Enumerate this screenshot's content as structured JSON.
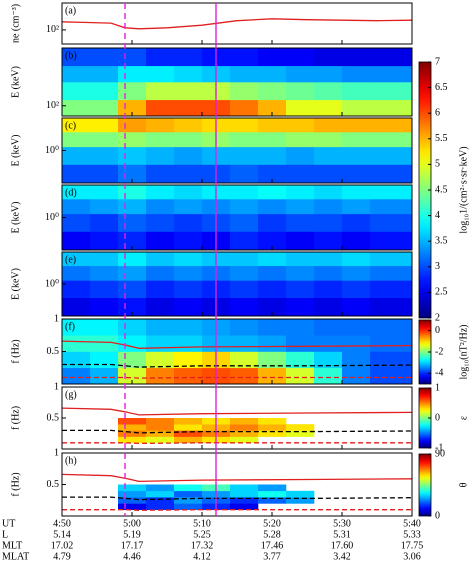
{
  "chart_data": [
    {
      "type": "line",
      "panel_label": "(a)",
      "ylabel": "ne (cm⁻³)",
      "xlim": [
        290,
        340
      ],
      "xticks": [
        290,
        300,
        310,
        320,
        330,
        340
      ],
      "ylog": true,
      "ylim": [
        30,
        1000
      ],
      "yticks": [
        {
          "value": 100,
          "label": "10²"
        }
      ],
      "color": "#e02020",
      "x": [
        290,
        293,
        297,
        299,
        301,
        305,
        310,
        315,
        320,
        325,
        330,
        335,
        340
      ],
      "values": [
        200,
        190,
        180,
        120,
        110,
        120,
        150,
        220,
        260,
        240,
        230,
        220,
        230
      ]
    },
    {
      "type": "heatmap",
      "panel_label": "(b)",
      "ylabel": "E (keV)",
      "xlim": [
        290,
        340
      ],
      "xticks": [
        290,
        300,
        310,
        320,
        330,
        340
      ],
      "ylog": true,
      "ylim": [
        50,
        5000
      ],
      "yticks": [
        {
          "value": 100,
          "label": "10²"
        }
      ],
      "xbins": [
        290,
        294,
        298,
        302,
        306,
        310,
        314,
        318,
        322,
        326,
        330,
        334,
        340
      ],
      "ybins": [
        50,
        150,
        500,
        1500,
        5000
      ],
      "z": [
        [
          4.5,
          4.5,
          5.5,
          6.0,
          6.0,
          6.0,
          5.8,
          5.5,
          5.0,
          5.0,
          4.8,
          4.8
        ],
        [
          4.0,
          4.0,
          4.5,
          4.8,
          4.8,
          4.8,
          4.6,
          4.5,
          4.4,
          4.3,
          4.2,
          4.2
        ],
        [
          3.5,
          3.5,
          3.8,
          3.8,
          3.7,
          3.6,
          3.5,
          3.5,
          3.4,
          3.4,
          3.3,
          3.3
        ],
        [
          3.0,
          3.0,
          3.0,
          2.8,
          2.8,
          2.7,
          2.7,
          2.6,
          2.6,
          2.5,
          2.5,
          2.5
        ]
      ],
      "colorbar": {
        "lim": [
          2,
          7
        ],
        "ticks": [
          2,
          2.5,
          3,
          3.5,
          4,
          4.5,
          5,
          5.5,
          6,
          6.5,
          7
        ],
        "label": "log₁₀1/(cm²·s·sr·keV)"
      }
    },
    {
      "type": "heatmap",
      "panel_label": "(c)",
      "ylabel": "E (keV)",
      "xlim": [
        290,
        340
      ],
      "xticks": [
        290,
        300,
        310,
        320,
        330,
        340
      ],
      "ylog": true,
      "ylim": [
        0.2,
        5
      ],
      "yticks": [
        {
          "value": 1,
          "label": "10⁰"
        }
      ],
      "xbins": [
        290,
        294,
        298,
        302,
        306,
        310,
        314,
        318,
        322,
        326,
        330,
        334,
        340
      ],
      "ybins": [
        0.2,
        0.5,
        1.2,
        2.5,
        5
      ],
      "z": [
        [
          3.0,
          3.0,
          3.2,
          3.0,
          3.0,
          3.0,
          3.1,
          3.0,
          3.0,
          3.0,
          3.0,
          3.0
        ],
        [
          3.5,
          3.5,
          3.6,
          3.5,
          3.4,
          3.5,
          3.5,
          3.5,
          3.4,
          3.5,
          3.5,
          3.5
        ],
        [
          4.5,
          4.5,
          4.6,
          4.5,
          4.5,
          4.6,
          4.5,
          4.5,
          4.6,
          4.6,
          4.5,
          4.5
        ],
        [
          5.2,
          5.2,
          5.6,
          5.5,
          5.4,
          5.3,
          5.3,
          5.4,
          5.4,
          5.5,
          5.5,
          5.5
        ]
      ]
    },
    {
      "type": "heatmap",
      "panel_label": "(d)",
      "ylabel": "E (keV)",
      "xlim": [
        290,
        340
      ],
      "xticks": [
        290,
        300,
        310,
        320,
        330,
        340
      ],
      "ylog": true,
      "ylim": [
        0.2,
        5
      ],
      "yticks": [
        {
          "value": 1,
          "label": "10⁰"
        }
      ],
      "xbins": [
        290,
        294,
        298,
        302,
        306,
        310,
        314,
        318,
        322,
        326,
        330,
        334,
        340
      ],
      "ybins": [
        0.2,
        0.5,
        1.2,
        2.5,
        5
      ],
      "z": [
        [
          2.6,
          2.7,
          2.8,
          2.6,
          2.7,
          2.6,
          2.8,
          2.7,
          2.6,
          2.7,
          2.6,
          2.7
        ],
        [
          3.0,
          2.9,
          3.1,
          3.0,
          2.9,
          3.0,
          3.1,
          2.9,
          3.0,
          3.0,
          2.9,
          3.0
        ],
        [
          3.3,
          3.4,
          3.5,
          3.3,
          3.4,
          3.3,
          3.4,
          3.3,
          3.4,
          3.3,
          3.4,
          3.3
        ],
        [
          3.8,
          3.8,
          4.0,
          3.8,
          3.7,
          3.8,
          3.8,
          3.9,
          3.8,
          3.7,
          3.8,
          3.8
        ]
      ]
    },
    {
      "type": "heatmap",
      "panel_label": "(e)",
      "ylabel": "E (keV)",
      "xlim": [
        290,
        340
      ],
      "xticks": [
        290,
        300,
        310,
        320,
        330,
        340
      ],
      "ylog": true,
      "ylim": [
        0.2,
        5
      ],
      "yticks": [
        {
          "value": 1,
          "label": "10⁰"
        }
      ],
      "xbins": [
        290,
        294,
        298,
        302,
        306,
        310,
        314,
        318,
        322,
        326,
        330,
        334,
        340
      ],
      "ybins": [
        0.2,
        0.5,
        1.2,
        2.5,
        5
      ],
      "z": [
        [
          2.5,
          2.6,
          2.7,
          2.5,
          2.6,
          2.5,
          2.6,
          2.5,
          2.6,
          2.5,
          2.6,
          2.5
        ],
        [
          2.8,
          2.9,
          3.0,
          2.8,
          2.9,
          2.8,
          2.9,
          2.8,
          2.9,
          2.8,
          2.9,
          2.8
        ],
        [
          3.2,
          3.3,
          3.4,
          3.2,
          3.3,
          3.2,
          3.3,
          3.2,
          3.3,
          3.2,
          3.3,
          3.2
        ],
        [
          3.6,
          3.6,
          3.8,
          3.6,
          3.7,
          3.6,
          3.6,
          3.7,
          3.6,
          3.6,
          3.7,
          3.6
        ]
      ]
    },
    {
      "type": "heatmap",
      "panel_label": "(f)",
      "ylabel": "f (Hz)",
      "xlim": [
        290,
        340
      ],
      "xticks": [
        290,
        300,
        310,
        320,
        330,
        340
      ],
      "ylim": [
        0,
        1
      ],
      "yticks": [
        0.5,
        1
      ],
      "xbins": [
        290,
        294,
        298,
        302,
        306,
        310,
        314,
        318,
        322,
        326,
        330,
        334,
        340
      ],
      "ybins": [
        0,
        0.25,
        0.5,
        0.75,
        1
      ],
      "z": [
        [
          -3.5,
          -3.2,
          -1.5,
          -0.5,
          -0.3,
          -0.2,
          -0.3,
          -0.8,
          -1.5,
          -2.5,
          -3.5,
          -3.8
        ],
        [
          -3.0,
          -2.8,
          -2.0,
          -1.5,
          -1.2,
          -1.0,
          -1.5,
          -2.0,
          -2.5,
          -3.0,
          -3.5,
          -3.8
        ],
        [
          -2.5,
          -2.5,
          -2.8,
          -3.0,
          -3.0,
          -3.2,
          -3.2,
          -3.3,
          -3.5,
          -3.5,
          -3.5,
          -3.6
        ],
        [
          -2.8,
          -2.8,
          -3.0,
          -3.2,
          -3.2,
          -3.3,
          -3.4,
          -3.5,
          -3.5,
          -3.6,
          -3.6,
          -3.6
        ]
      ],
      "colorbar": {
        "lim": [
          -5,
          1
        ],
        "ticks": [
          0,
          -2,
          -4
        ],
        "label": "log₁₀(nT²/Hz)"
      },
      "series": [
        {
          "color": "#e02020",
          "dash": false,
          "x": [
            290,
            297,
            299,
            301,
            310,
            325,
            340
          ],
          "values": [
            0.66,
            0.64,
            0.6,
            0.55,
            0.57,
            0.58,
            0.59
          ]
        },
        {
          "color": "#000000",
          "dash": true,
          "x": [
            290,
            297,
            299,
            301,
            310,
            325,
            340
          ],
          "values": [
            0.3,
            0.3,
            0.28,
            0.26,
            0.28,
            0.28,
            0.29
          ]
        },
        {
          "color": "#e02020",
          "dash": true,
          "x": [
            290,
            297,
            299,
            301,
            310,
            325,
            340
          ],
          "values": [
            0.1,
            0.1,
            0.1,
            0.09,
            0.1,
            0.1,
            0.1
          ]
        }
      ]
    },
    {
      "type": "heatmap",
      "panel_label": "(g)",
      "ylabel": "f (Hz)",
      "xlim": [
        290,
        340
      ],
      "xticks": [
        290,
        300,
        310,
        320,
        330,
        340
      ],
      "ylim": [
        0,
        1
      ],
      "yticks": [
        0.5,
        1
      ],
      "xbins": [
        290,
        294,
        298,
        302,
        306,
        310,
        314,
        318,
        322,
        326,
        330,
        334,
        340
      ],
      "ybins": [
        0.1,
        0.2,
        0.3,
        0.4,
        0.5
      ],
      "z": [
        [
          null,
          null,
          0.3,
          0.2,
          0.4,
          0.3,
          0.2,
          null,
          null,
          null,
          null,
          null
        ],
        [
          null,
          null,
          0.5,
          0.4,
          0.6,
          0.5,
          0.4,
          0.3,
          0.2,
          null,
          null,
          null
        ],
        [
          null,
          null,
          0.4,
          0.5,
          0.3,
          0.4,
          0.5,
          0.4,
          0.3,
          null,
          null,
          null
        ],
        [
          null,
          null,
          0.6,
          0.5,
          0.4,
          0.3,
          0.4,
          0.3,
          null,
          null,
          null,
          null
        ]
      ],
      "colorbar": {
        "lim": [
          -1,
          1
        ],
        "ticks": [
          1,
          0,
          -1
        ],
        "label": "ε"
      },
      "series": [
        {
          "color": "#e02020",
          "dash": false,
          "x": [
            290,
            297,
            299,
            301,
            310,
            325,
            340
          ],
          "values": [
            0.66,
            0.64,
            0.6,
            0.55,
            0.57,
            0.58,
            0.59
          ]
        },
        {
          "color": "#000000",
          "dash": true,
          "x": [
            290,
            297,
            299,
            301,
            310,
            325,
            340
          ],
          "values": [
            0.3,
            0.3,
            0.28,
            0.26,
            0.28,
            0.28,
            0.29
          ]
        },
        {
          "color": "#e02020",
          "dash": true,
          "x": [
            290,
            297,
            299,
            301,
            310,
            325,
            340
          ],
          "values": [
            0.1,
            0.1,
            0.1,
            0.09,
            0.1,
            0.1,
            0.1
          ]
        }
      ]
    },
    {
      "type": "heatmap",
      "panel_label": "(h)",
      "ylabel": "f (Hz)",
      "xlim": [
        290,
        340
      ],
      "xticks": [
        {
          "value": 290,
          "label": "4:50"
        },
        {
          "value": 300,
          "label": "5:00"
        },
        {
          "value": 310,
          "label": "5:10"
        },
        {
          "value": 320,
          "label": "5:20"
        },
        {
          "value": 330,
          "label": "5:30"
        },
        {
          "value": 340,
          "label": "5:40"
        }
      ],
      "ylim": [
        0,
        1
      ],
      "yticks": [
        0.5,
        1
      ],
      "xbins": [
        290,
        294,
        298,
        302,
        306,
        310,
        314,
        318,
        322,
        326,
        330,
        334,
        340
      ],
      "ybins": [
        0.1,
        0.2,
        0.3,
        0.4,
        0.5
      ],
      "z": [
        [
          null,
          null,
          10,
          15,
          20,
          15,
          10,
          null,
          null,
          null,
          null,
          null
        ],
        [
          null,
          null,
          20,
          15,
          25,
          20,
          15,
          20,
          25,
          null,
          null,
          null
        ],
        [
          null,
          null,
          25,
          30,
          20,
          25,
          30,
          35,
          30,
          null,
          null,
          null
        ],
        [
          null,
          null,
          30,
          25,
          35,
          40,
          30,
          25,
          null,
          null,
          null,
          null
        ]
      ],
      "colorbar": {
        "lim": [
          0,
          90
        ],
        "ticks": [
          0,
          90
        ],
        "label": "θ"
      },
      "series": [
        {
          "color": "#e02020",
          "dash": false,
          "x": [
            290,
            297,
            299,
            301,
            310,
            325,
            340
          ],
          "values": [
            0.66,
            0.64,
            0.6,
            0.55,
            0.57,
            0.58,
            0.59
          ]
        },
        {
          "color": "#000000",
          "dash": true,
          "x": [
            290,
            297,
            299,
            301,
            310,
            325,
            340
          ],
          "values": [
            0.3,
            0.3,
            0.28,
            0.26,
            0.28,
            0.28,
            0.29
          ]
        },
        {
          "color": "#e02020",
          "dash": true,
          "x": [
            290,
            297,
            299,
            301,
            310,
            325,
            340
          ],
          "values": [
            0.1,
            0.1,
            0.1,
            0.09,
            0.1,
            0.1,
            0.1
          ]
        }
      ]
    }
  ],
  "event_lines": {
    "color": "#e020e0",
    "x": [
      299,
      312
    ],
    "dash": [
      true,
      false
    ]
  },
  "orbit_table": {
    "labels": [
      "UT",
      "L",
      "MLT",
      "MLAT"
    ],
    "rows": [
      [
        "5.14",
        "5.19",
        "5.25",
        "5.28",
        "5.31",
        "5.33"
      ],
      [
        "17.02",
        "17.17",
        "17.32",
        "17.46",
        "17.60",
        "17.75"
      ],
      [
        "4.79",
        "4.46",
        "4.12",
        "3.77",
        "3.42",
        "3.06"
      ]
    ]
  }
}
